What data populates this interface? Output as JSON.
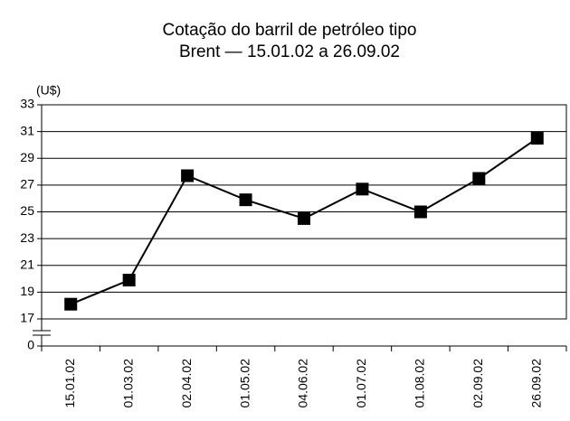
{
  "chart_data": {
    "type": "line",
    "title": [
      "Cotação do barril de petróleo tipo",
      "Brent — 15.01.02 a 26.09.02"
    ],
    "y_label": "(U$)",
    "categories": [
      "15.01.02",
      "01.03.02",
      "02.04.02",
      "01.05.02",
      "04.06.02",
      "01.07.02",
      "01.08.02",
      "02.09.02",
      "26.09.02"
    ],
    "series": [
      {
        "color": "#000000",
        "values": [
          18.1,
          19.9,
          27.7,
          25.9,
          24.5,
          26.7,
          25.0,
          27.5,
          30.5
        ]
      }
    ],
    "ylim": [
      0,
      33
    ],
    "yticks": [
      0,
      17,
      19,
      21,
      23,
      25,
      27,
      29,
      31,
      33
    ],
    "grid": true
  }
}
